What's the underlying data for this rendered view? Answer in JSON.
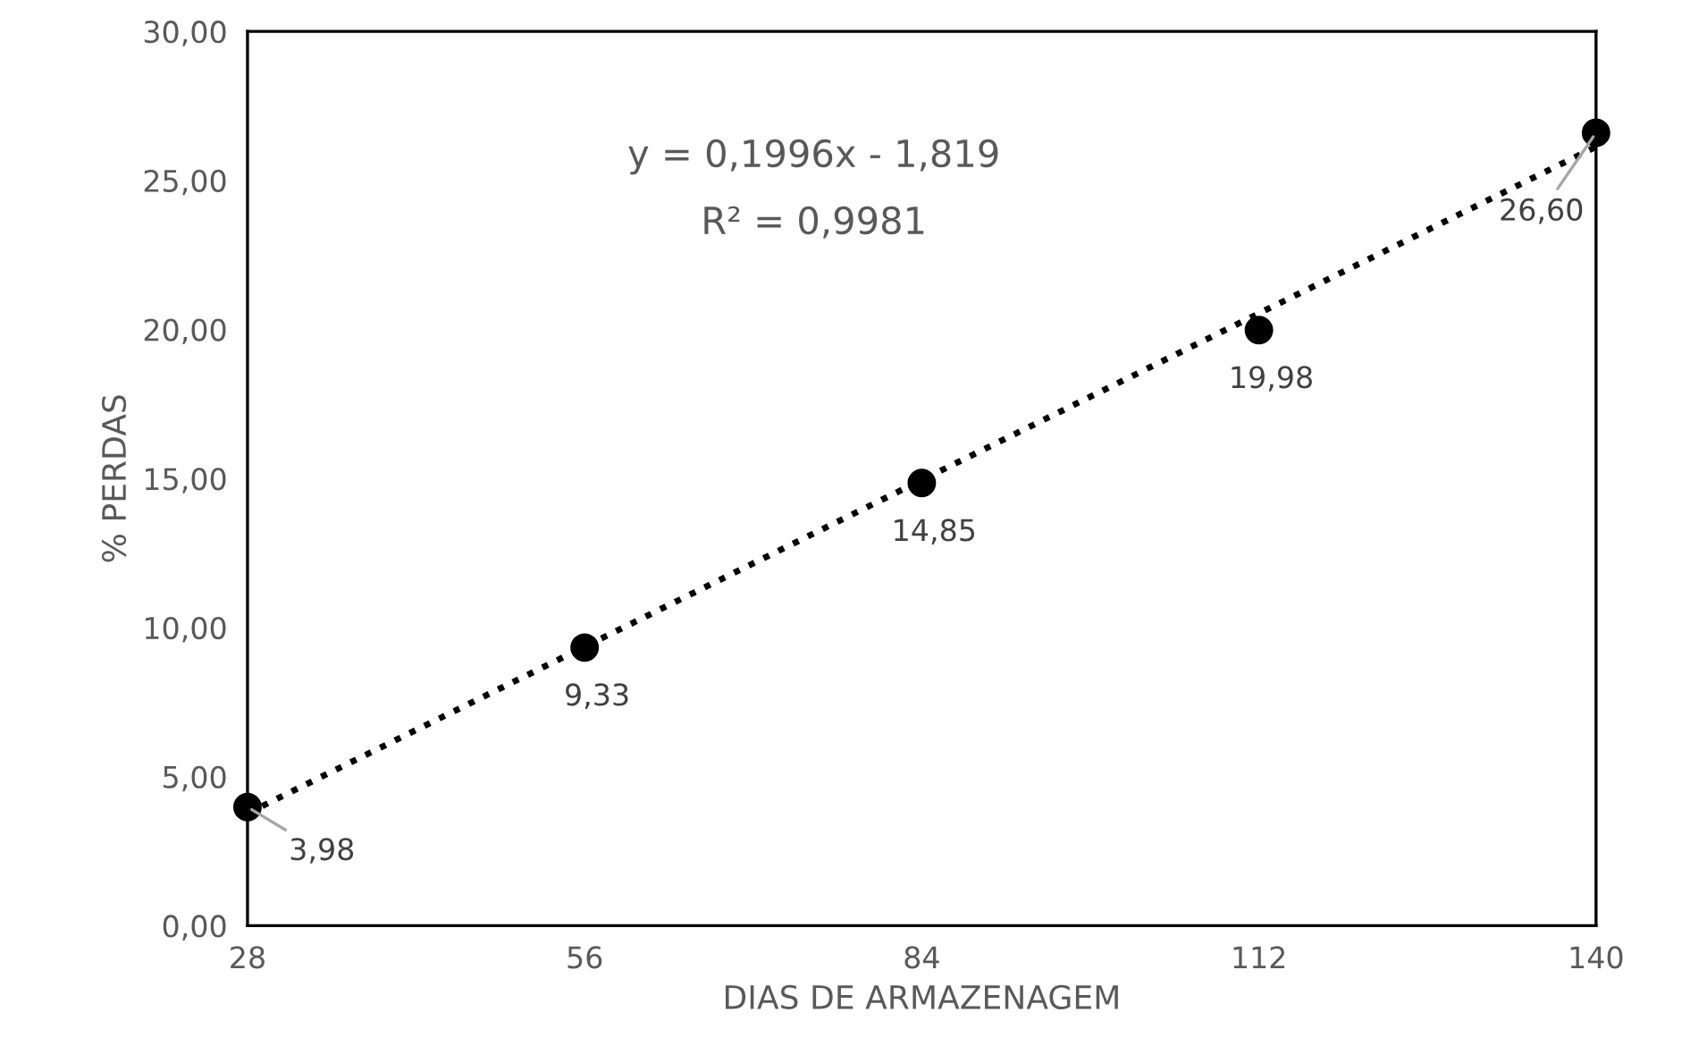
{
  "chart_data": {
    "type": "scatter",
    "xlabel": "DIAS DE ARMAZENAGEM",
    "ylabel": "% PERDAS",
    "xlim": [
      28,
      140
    ],
    "xticks": [
      28,
      56,
      84,
      112,
      140
    ],
    "ylim": [
      0,
      30
    ],
    "yticks": [
      {
        "value": 0,
        "label": "0,00"
      },
      {
        "value": 5,
        "label": "5,00"
      },
      {
        "value": 10,
        "label": "10,00"
      },
      {
        "value": 15,
        "label": "15,00"
      },
      {
        "value": 20,
        "label": "20,00"
      },
      {
        "value": 25,
        "label": "25,00"
      },
      {
        "value": 30,
        "label": "30,00"
      }
    ],
    "x": [
      28,
      56,
      84,
      112,
      140
    ],
    "series": [
      {
        "color": "#000000",
        "marker": "circle",
        "values": [
          3.98,
          9.33,
          14.85,
          19.98,
          26.6
        ],
        "value_labels": [
          "3,98",
          "9,33",
          "14,85",
          "19,98",
          "26,60"
        ]
      },
      {
        "type": "line",
        "color": "#000000",
        "line_style": "dotted",
        "x": [
          28,
          140
        ],
        "values": [
          3.77,
          26.13
        ]
      }
    ],
    "annotations": [
      "y = 0,1996x - 1,819",
      "R² = 0,9981"
    ],
    "grid": false,
    "legend": false
  }
}
